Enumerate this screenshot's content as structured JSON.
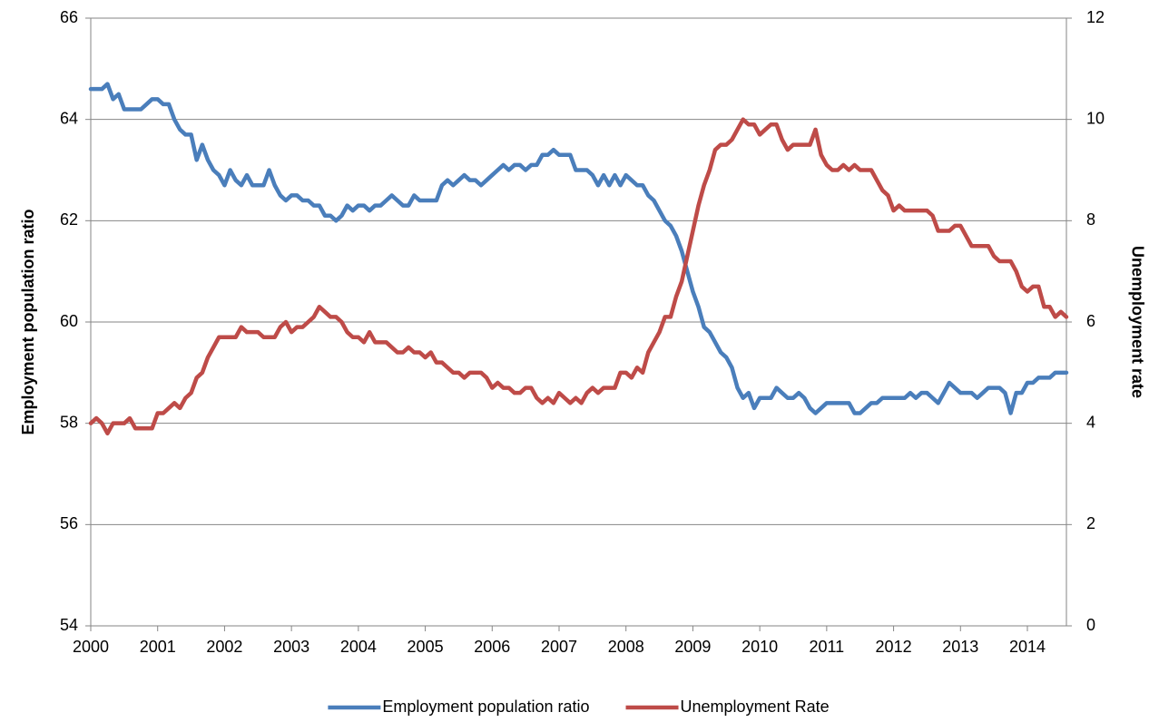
{
  "chart_data": {
    "type": "line",
    "ylabel": "Employment population ratio",
    "y2label": "Unemployment rate",
    "categories": [
      "2000",
      null,
      null,
      null,
      null,
      null,
      null,
      null,
      null,
      null,
      null,
      null,
      "2001",
      null,
      null,
      null,
      null,
      null,
      null,
      null,
      null,
      null,
      null,
      null,
      "2002",
      null,
      null,
      null,
      null,
      null,
      null,
      null,
      null,
      null,
      null,
      null,
      "2003",
      null,
      null,
      null,
      null,
      null,
      null,
      null,
      null,
      null,
      null,
      null,
      "2004",
      null,
      null,
      null,
      null,
      null,
      null,
      null,
      null,
      null,
      null,
      null,
      "2005",
      null,
      null,
      null,
      null,
      null,
      null,
      null,
      null,
      null,
      null,
      null,
      "2006",
      null,
      null,
      null,
      null,
      null,
      null,
      null,
      null,
      null,
      null,
      null,
      "2007",
      null,
      null,
      null,
      null,
      null,
      null,
      null,
      null,
      null,
      null,
      null,
      "2008",
      null,
      null,
      null,
      null,
      null,
      null,
      null,
      null,
      null,
      null,
      null,
      "2009",
      null,
      null,
      null,
      null,
      null,
      null,
      null,
      null,
      null,
      null,
      null,
      "2010",
      null,
      null,
      null,
      null,
      null,
      null,
      null,
      null,
      null,
      null,
      null,
      "2011",
      null,
      null,
      null,
      null,
      null,
      null,
      null,
      null,
      null,
      null,
      null,
      "2012",
      null,
      null,
      null,
      null,
      null,
      null,
      null,
      null,
      null,
      null,
      null,
      "2013",
      null,
      null,
      null,
      null,
      null,
      null,
      null,
      null,
      null,
      null,
      null,
      "2014",
      null,
      null,
      null,
      null,
      null,
      null,
      null
    ],
    "series": [
      {
        "name": "Employment population ratio",
        "color": "#4a7ebb",
        "values": [
          64.6,
          64.6,
          64.6,
          64.7,
          64.4,
          64.5,
          64.2,
          64.2,
          64.2,
          64.2,
          64.3,
          64.4,
          64.4,
          64.3,
          64.3,
          64.0,
          63.8,
          63.7,
          63.7,
          63.2,
          63.5,
          63.2,
          63.0,
          62.9,
          62.7,
          63.0,
          62.8,
          62.7,
          62.9,
          62.7,
          62.7,
          62.7,
          63.0,
          62.7,
          62.5,
          62.4,
          62.5,
          62.5,
          62.4,
          62.4,
          62.3,
          62.3,
          62.1,
          62.1,
          62.0,
          62.1,
          62.3,
          62.2,
          62.3,
          62.3,
          62.2,
          62.3,
          62.3,
          62.4,
          62.5,
          62.4,
          62.3,
          62.3,
          62.5,
          62.4,
          62.4,
          62.4,
          62.4,
          62.7,
          62.8,
          62.7,
          62.8,
          62.9,
          62.8,
          62.8,
          62.7,
          62.8,
          62.9,
          63.0,
          63.1,
          63.0,
          63.1,
          63.1,
          63.0,
          63.1,
          63.1,
          63.3,
          63.3,
          63.4,
          63.3,
          63.3,
          63.3,
          63.0,
          63.0,
          63.0,
          62.9,
          62.7,
          62.9,
          62.7,
          62.9,
          62.7,
          62.9,
          62.8,
          62.7,
          62.7,
          62.5,
          62.4,
          62.2,
          62.0,
          61.9,
          61.7,
          61.4,
          61.0,
          60.6,
          60.3,
          59.9,
          59.8,
          59.6,
          59.4,
          59.3,
          59.1,
          58.7,
          58.5,
          58.6,
          58.3,
          58.5,
          58.5,
          58.5,
          58.7,
          58.6,
          58.5,
          58.5,
          58.6,
          58.5,
          58.3,
          58.2,
          58.3,
          58.4,
          58.4,
          58.4,
          58.4,
          58.4,
          58.2,
          58.2,
          58.3,
          58.4,
          58.4,
          58.5,
          58.5,
          58.5,
          58.5,
          58.5,
          58.6,
          58.5,
          58.6,
          58.6,
          58.5,
          58.4,
          58.6,
          58.8,
          58.7,
          58.6,
          58.6,
          58.6,
          58.5,
          58.6,
          58.7,
          58.7,
          58.7,
          58.6,
          58.2,
          58.6,
          58.6,
          58.8,
          58.8,
          58.9,
          58.9,
          58.9,
          59.0,
          59.0,
          59.0
        ]
      },
      {
        "name": "Unemployment Rate",
        "color": "#be4b48",
        "axis": "y2",
        "values": [
          4.0,
          4.1,
          4.0,
          3.8,
          4.0,
          4.0,
          4.0,
          4.1,
          3.9,
          3.9,
          3.9,
          3.9,
          4.2,
          4.2,
          4.3,
          4.4,
          4.3,
          4.5,
          4.6,
          4.9,
          5.0,
          5.3,
          5.5,
          5.7,
          5.7,
          5.7,
          5.7,
          5.9,
          5.8,
          5.8,
          5.8,
          5.7,
          5.7,
          5.7,
          5.9,
          6.0,
          5.8,
          5.9,
          5.9,
          6.0,
          6.1,
          6.3,
          6.2,
          6.1,
          6.1,
          6.0,
          5.8,
          5.7,
          5.7,
          5.6,
          5.8,
          5.6,
          5.6,
          5.6,
          5.5,
          5.4,
          5.4,
          5.5,
          5.4,
          5.4,
          5.3,
          5.4,
          5.2,
          5.2,
          5.1,
          5.0,
          5.0,
          4.9,
          5.0,
          5.0,
          5.0,
          4.9,
          4.7,
          4.8,
          4.7,
          4.7,
          4.6,
          4.6,
          4.7,
          4.7,
          4.5,
          4.4,
          4.5,
          4.4,
          4.6,
          4.5,
          4.4,
          4.5,
          4.4,
          4.6,
          4.7,
          4.6,
          4.7,
          4.7,
          4.7,
          5.0,
          5.0,
          4.9,
          5.1,
          5.0,
          5.4,
          5.6,
          5.8,
          6.1,
          6.1,
          6.5,
          6.8,
          7.3,
          7.8,
          8.3,
          8.7,
          9.0,
          9.4,
          9.5,
          9.5,
          9.6,
          9.8,
          10.0,
          9.9,
          9.9,
          9.7,
          9.8,
          9.9,
          9.9,
          9.6,
          9.4,
          9.5,
          9.5,
          9.5,
          9.5,
          9.8,
          9.3,
          9.1,
          9.0,
          9.0,
          9.1,
          9.0,
          9.1,
          9.0,
          9.0,
          9.0,
          8.8,
          8.6,
          8.5,
          8.2,
          8.3,
          8.2,
          8.2,
          8.2,
          8.2,
          8.2,
          8.1,
          7.8,
          7.8,
          7.8,
          7.9,
          7.9,
          7.7,
          7.5,
          7.5,
          7.5,
          7.5,
          7.3,
          7.2,
          7.2,
          7.2,
          7.0,
          6.7,
          6.6,
          6.7,
          6.7,
          6.3,
          6.3,
          6.1,
          6.2,
          6.1
        ]
      }
    ],
    "ylim": [
      54,
      66
    ],
    "yticks": [
      54,
      56,
      58,
      60,
      62,
      64,
      66
    ],
    "y2lim": [
      0,
      12
    ],
    "y2ticks": [
      0,
      2,
      4,
      6,
      8,
      10,
      12
    ],
    "grid": true,
    "legend": "bottom"
  }
}
